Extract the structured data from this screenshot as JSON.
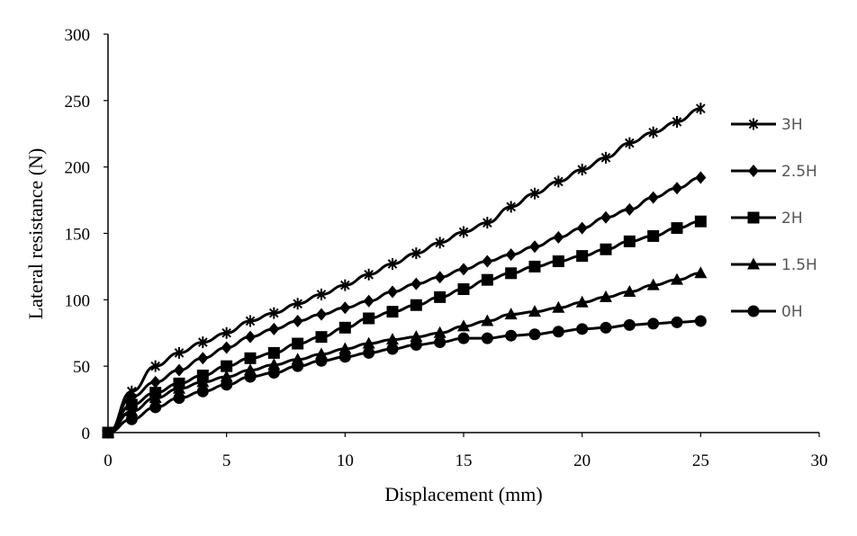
{
  "chart_data": {
    "type": "line",
    "xlabel": "Displacement (mm)",
    "ylabel": "Lateral resistance (N)",
    "xlim": [
      0,
      30
    ],
    "ylim": [
      0,
      300
    ],
    "x_ticks": [
      0,
      5,
      10,
      15,
      20,
      25,
      30
    ],
    "y_ticks": [
      0,
      50,
      100,
      150,
      200,
      250,
      300
    ],
    "grid": false,
    "legend_position": "right",
    "x": [
      0,
      1,
      2,
      3,
      4,
      5,
      6,
      7,
      8,
      9,
      10,
      11,
      12,
      13,
      14,
      15,
      16,
      17,
      18,
      19,
      20,
      21,
      22,
      23,
      24,
      25
    ],
    "series": [
      {
        "name": "3H",
        "marker": "star",
        "values": [
          0,
          31,
          50,
          60,
          68,
          75,
          84,
          90,
          97,
          104,
          111,
          119,
          127,
          135,
          143,
          151,
          158,
          170,
          180,
          189,
          198,
          207,
          218,
          226,
          234,
          244
        ]
      },
      {
        "name": "2.5H",
        "marker": "diamond",
        "values": [
          0,
          27,
          38,
          47,
          56,
          64,
          72,
          78,
          84,
          89,
          94,
          99,
          106,
          112,
          117,
          123,
          129,
          134,
          140,
          147,
          154,
          162,
          168,
          177,
          184,
          192
        ]
      },
      {
        "name": "2H",
        "marker": "square",
        "values": [
          0,
          21,
          30,
          37,
          43,
          50,
          56,
          60,
          67,
          72,
          79,
          86,
          91,
          96,
          102,
          108,
          115,
          120,
          125,
          129,
          133,
          138,
          144,
          148,
          154,
          159
        ]
      },
      {
        "name": "1.5H",
        "marker": "triangle",
        "values": [
          0,
          16,
          26,
          33,
          38,
          42,
          47,
          51,
          55,
          59,
          63,
          67,
          70,
          72,
          75,
          80,
          84,
          89,
          91,
          94,
          98,
          102,
          106,
          111,
          115,
          120
        ]
      },
      {
        "name": "0H",
        "marker": "circle",
        "values": [
          0,
          10,
          19,
          26,
          31,
          36,
          42,
          45,
          50,
          54,
          57,
          60,
          63,
          66,
          68,
          71,
          71,
          73,
          74,
          76,
          78,
          79,
          81,
          82,
          83,
          84
        ]
      }
    ]
  }
}
